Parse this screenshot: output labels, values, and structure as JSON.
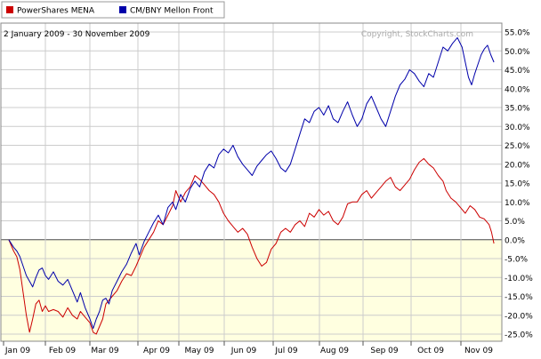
{
  "chart_data": {
    "type": "line",
    "date_range": "2 January 2009 - 30 November 2009",
    "copyright": "Copyright, StockCharts.com",
    "x_axis": {
      "tick_labels": [
        "Jan 09",
        "Feb 09",
        "Mar 09",
        "Apr 09",
        "May 09",
        "Jun 09",
        "Jul 09",
        "Aug 09",
        "Sep 09",
        "Oct 09",
        "Nov 09"
      ]
    },
    "y_axis": {
      "ylim": [
        -25,
        55
      ],
      "tick_values": [
        55,
        50,
        45,
        40,
        35,
        30,
        25,
        20,
        15,
        10,
        5,
        0,
        -5,
        -10,
        -15,
        -20,
        -25
      ],
      "tick_labels": [
        "55.0%",
        "50.0%",
        "45.0%",
        "40.0%",
        "35.0%",
        "30.0%",
        "25.0%",
        "20.0%",
        "15.0%",
        "10.0%",
        "5.0%",
        "0.0%",
        "-5.0%",
        "-10.0%",
        "-15.0%",
        "-20.0%",
        "-25.0%"
      ],
      "position": "right"
    },
    "grid": true,
    "legend_placement": "top-left",
    "colors": {
      "mena": "#cc0000",
      "bny": "#0000aa",
      "positive_fill": "#ffffff",
      "negative_fill": "#ffffe0",
      "plot_border": "#888888",
      "grid": "#cccccc"
    },
    "series": [
      {
        "name": "PowerShares MENA",
        "color": "#cc0000",
        "points": [
          [
            0.5,
            0.0
          ],
          [
            0.8,
            -3.0
          ],
          [
            1.0,
            -4.5
          ],
          [
            1.2,
            -8.0
          ],
          [
            1.4,
            -14.0
          ],
          [
            1.6,
            -20.0
          ],
          [
            1.8,
            -24.5
          ],
          [
            2.0,
            -21.0
          ],
          [
            2.2,
            -17.0
          ],
          [
            2.4,
            -16.0
          ],
          [
            2.6,
            -19.0
          ],
          [
            2.8,
            -17.5
          ],
          [
            3.0,
            -19.0
          ],
          [
            3.3,
            -18.5
          ],
          [
            3.6,
            -19.0
          ],
          [
            3.9,
            -20.5
          ],
          [
            4.2,
            -18.0
          ],
          [
            4.5,
            -20.0
          ],
          [
            4.8,
            -21.0
          ],
          [
            5.0,
            -19.0
          ],
          [
            5.3,
            -20.5
          ],
          [
            5.6,
            -22.0
          ],
          [
            5.8,
            -24.5
          ],
          [
            6.0,
            -25.0
          ],
          [
            6.2,
            -23.0
          ],
          [
            6.4,
            -21.0
          ],
          [
            6.6,
            -17.0
          ],
          [
            6.8,
            -16.0
          ],
          [
            7.0,
            -15.0
          ],
          [
            7.3,
            -13.5
          ],
          [
            7.6,
            -11.0
          ],
          [
            7.9,
            -9.0
          ],
          [
            8.2,
            -9.5
          ],
          [
            8.5,
            -7.0
          ],
          [
            8.7,
            -5.0
          ],
          [
            9.0,
            -2.0
          ],
          [
            9.3,
            0.0
          ],
          [
            9.6,
            2.0
          ],
          [
            9.9,
            5.0
          ],
          [
            10.2,
            4.0
          ],
          [
            10.5,
            6.5
          ],
          [
            10.8,
            9.0
          ],
          [
            11.0,
            13.0
          ],
          [
            11.3,
            10.0
          ],
          [
            11.6,
            12.5
          ],
          [
            11.9,
            14.0
          ],
          [
            12.2,
            17.0
          ],
          [
            12.5,
            16.0
          ],
          [
            12.8,
            14.5
          ],
          [
            13.1,
            13.0
          ],
          [
            13.4,
            12.0
          ],
          [
            13.7,
            10.0
          ],
          [
            14.0,
            7.0
          ],
          [
            14.3,
            5.0
          ],
          [
            14.6,
            3.5
          ],
          [
            14.9,
            2.0
          ],
          [
            15.2,
            3.0
          ],
          [
            15.5,
            1.5
          ],
          [
            15.8,
            -2.0
          ],
          [
            16.1,
            -5.0
          ],
          [
            16.4,
            -7.0
          ],
          [
            16.7,
            -6.0
          ],
          [
            17.0,
            -2.5
          ],
          [
            17.3,
            -1.0
          ],
          [
            17.6,
            2.0
          ],
          [
            17.9,
            3.0
          ],
          [
            18.2,
            2.0
          ],
          [
            18.5,
            4.0
          ],
          [
            18.8,
            5.0
          ],
          [
            19.1,
            3.5
          ],
          [
            19.4,
            7.0
          ],
          [
            19.7,
            6.0
          ],
          [
            20.0,
            8.0
          ],
          [
            20.3,
            6.5
          ],
          [
            20.6,
            7.5
          ],
          [
            20.9,
            5.0
          ],
          [
            21.2,
            4.0
          ],
          [
            21.5,
            6.0
          ],
          [
            21.8,
            9.5
          ],
          [
            22.1,
            10.0
          ],
          [
            22.4,
            10.0
          ],
          [
            22.7,
            12.0
          ],
          [
            23.0,
            13.0
          ],
          [
            23.3,
            11.0
          ],
          [
            23.6,
            12.5
          ],
          [
            23.9,
            14.0
          ],
          [
            24.2,
            15.5
          ],
          [
            24.5,
            16.5
          ],
          [
            24.8,
            14.0
          ],
          [
            25.1,
            13.0
          ],
          [
            25.4,
            14.5
          ],
          [
            25.7,
            16.0
          ],
          [
            26.0,
            18.5
          ],
          [
            26.3,
            20.5
          ],
          [
            26.6,
            21.5
          ],
          [
            26.9,
            20.0
          ],
          [
            27.2,
            19.0
          ],
          [
            27.5,
            17.0
          ],
          [
            27.8,
            15.5
          ],
          [
            28.0,
            13.0
          ],
          [
            28.3,
            11.0
          ],
          [
            28.6,
            10.0
          ],
          [
            28.9,
            8.5
          ],
          [
            29.2,
            7.0
          ],
          [
            29.5,
            9.0
          ],
          [
            29.8,
            8.0
          ],
          [
            30.1,
            6.0
          ],
          [
            30.4,
            5.5
          ],
          [
            30.7,
            4.0
          ],
          [
            30.85,
            2.0
          ],
          [
            31.0,
            -1.0
          ]
        ]
      },
      {
        "name": "CM/BNY Mellon Front",
        "color": "#0000aa",
        "points": [
          [
            0.5,
            0.0
          ],
          [
            0.8,
            -2.0
          ],
          [
            1.0,
            -3.0
          ],
          [
            1.2,
            -4.5
          ],
          [
            1.4,
            -7.0
          ],
          [
            1.6,
            -9.5
          ],
          [
            1.8,
            -11.0
          ],
          [
            2.0,
            -12.5
          ],
          [
            2.2,
            -10.0
          ],
          [
            2.4,
            -8.0
          ],
          [
            2.6,
            -7.5
          ],
          [
            2.8,
            -9.5
          ],
          [
            3.0,
            -10.5
          ],
          [
            3.3,
            -8.5
          ],
          [
            3.6,
            -11.0
          ],
          [
            3.9,
            -12.0
          ],
          [
            4.2,
            -10.5
          ],
          [
            4.5,
            -13.5
          ],
          [
            4.8,
            -16.5
          ],
          [
            5.0,
            -14.0
          ],
          [
            5.3,
            -18.0
          ],
          [
            5.6,
            -21.0
          ],
          [
            5.8,
            -23.5
          ],
          [
            6.0,
            -21.0
          ],
          [
            6.2,
            -19.0
          ],
          [
            6.4,
            -16.0
          ],
          [
            6.6,
            -15.5
          ],
          [
            6.8,
            -17.0
          ],
          [
            7.0,
            -13.5
          ],
          [
            7.3,
            -11.0
          ],
          [
            7.6,
            -8.5
          ],
          [
            7.9,
            -6.5
          ],
          [
            8.2,
            -3.5
          ],
          [
            8.5,
            -1.0
          ],
          [
            8.7,
            -4.0
          ],
          [
            9.0,
            -0.5
          ],
          [
            9.3,
            2.0
          ],
          [
            9.6,
            4.5
          ],
          [
            9.9,
            6.5
          ],
          [
            10.2,
            4.0
          ],
          [
            10.5,
            8.5
          ],
          [
            10.8,
            10.0
          ],
          [
            11.0,
            8.0
          ],
          [
            11.3,
            12.0
          ],
          [
            11.6,
            10.0
          ],
          [
            11.9,
            13.5
          ],
          [
            12.2,
            15.5
          ],
          [
            12.5,
            14.0
          ],
          [
            12.8,
            18.0
          ],
          [
            13.1,
            20.0
          ],
          [
            13.4,
            19.0
          ],
          [
            13.7,
            22.5
          ],
          [
            14.0,
            24.0
          ],
          [
            14.3,
            23.0
          ],
          [
            14.6,
            25.0
          ],
          [
            14.9,
            22.0
          ],
          [
            15.2,
            20.0
          ],
          [
            15.5,
            18.5
          ],
          [
            15.8,
            17.0
          ],
          [
            16.1,
            19.5
          ],
          [
            16.4,
            21.0
          ],
          [
            16.7,
            22.5
          ],
          [
            17.0,
            23.5
          ],
          [
            17.3,
            21.5
          ],
          [
            17.6,
            19.0
          ],
          [
            17.9,
            18.0
          ],
          [
            18.2,
            20.0
          ],
          [
            18.5,
            24.0
          ],
          [
            18.8,
            28.0
          ],
          [
            19.1,
            32.0
          ],
          [
            19.4,
            31.0
          ],
          [
            19.7,
            34.0
          ],
          [
            20.0,
            35.0
          ],
          [
            20.3,
            33.0
          ],
          [
            20.6,
            35.5
          ],
          [
            20.9,
            32.0
          ],
          [
            21.2,
            31.0
          ],
          [
            21.5,
            34.0
          ],
          [
            21.8,
            36.5
          ],
          [
            22.1,
            33.0
          ],
          [
            22.4,
            30.0
          ],
          [
            22.7,
            32.0
          ],
          [
            23.0,
            36.0
          ],
          [
            23.3,
            38.0
          ],
          [
            23.6,
            35.0
          ],
          [
            23.9,
            32.0
          ],
          [
            24.2,
            30.0
          ],
          [
            24.5,
            34.0
          ],
          [
            24.8,
            38.0
          ],
          [
            25.1,
            41.0
          ],
          [
            25.4,
            42.5
          ],
          [
            25.7,
            45.0
          ],
          [
            26.0,
            44.0
          ],
          [
            26.3,
            42.0
          ],
          [
            26.6,
            40.5
          ],
          [
            26.9,
            44.0
          ],
          [
            27.2,
            43.0
          ],
          [
            27.5,
            47.0
          ],
          [
            27.8,
            51.0
          ],
          [
            28.1,
            50.0
          ],
          [
            28.4,
            52.0
          ],
          [
            28.7,
            53.5
          ],
          [
            29.0,
            51.0
          ],
          [
            29.2,
            47.0
          ],
          [
            29.4,
            43.0
          ],
          [
            29.6,
            41.0
          ],
          [
            29.8,
            44.0
          ],
          [
            30.0,
            46.5
          ],
          [
            30.2,
            49.0
          ],
          [
            30.4,
            50.5
          ],
          [
            30.6,
            51.5
          ],
          [
            30.8,
            49.0
          ],
          [
            31.0,
            47.0
          ]
        ]
      }
    ]
  }
}
